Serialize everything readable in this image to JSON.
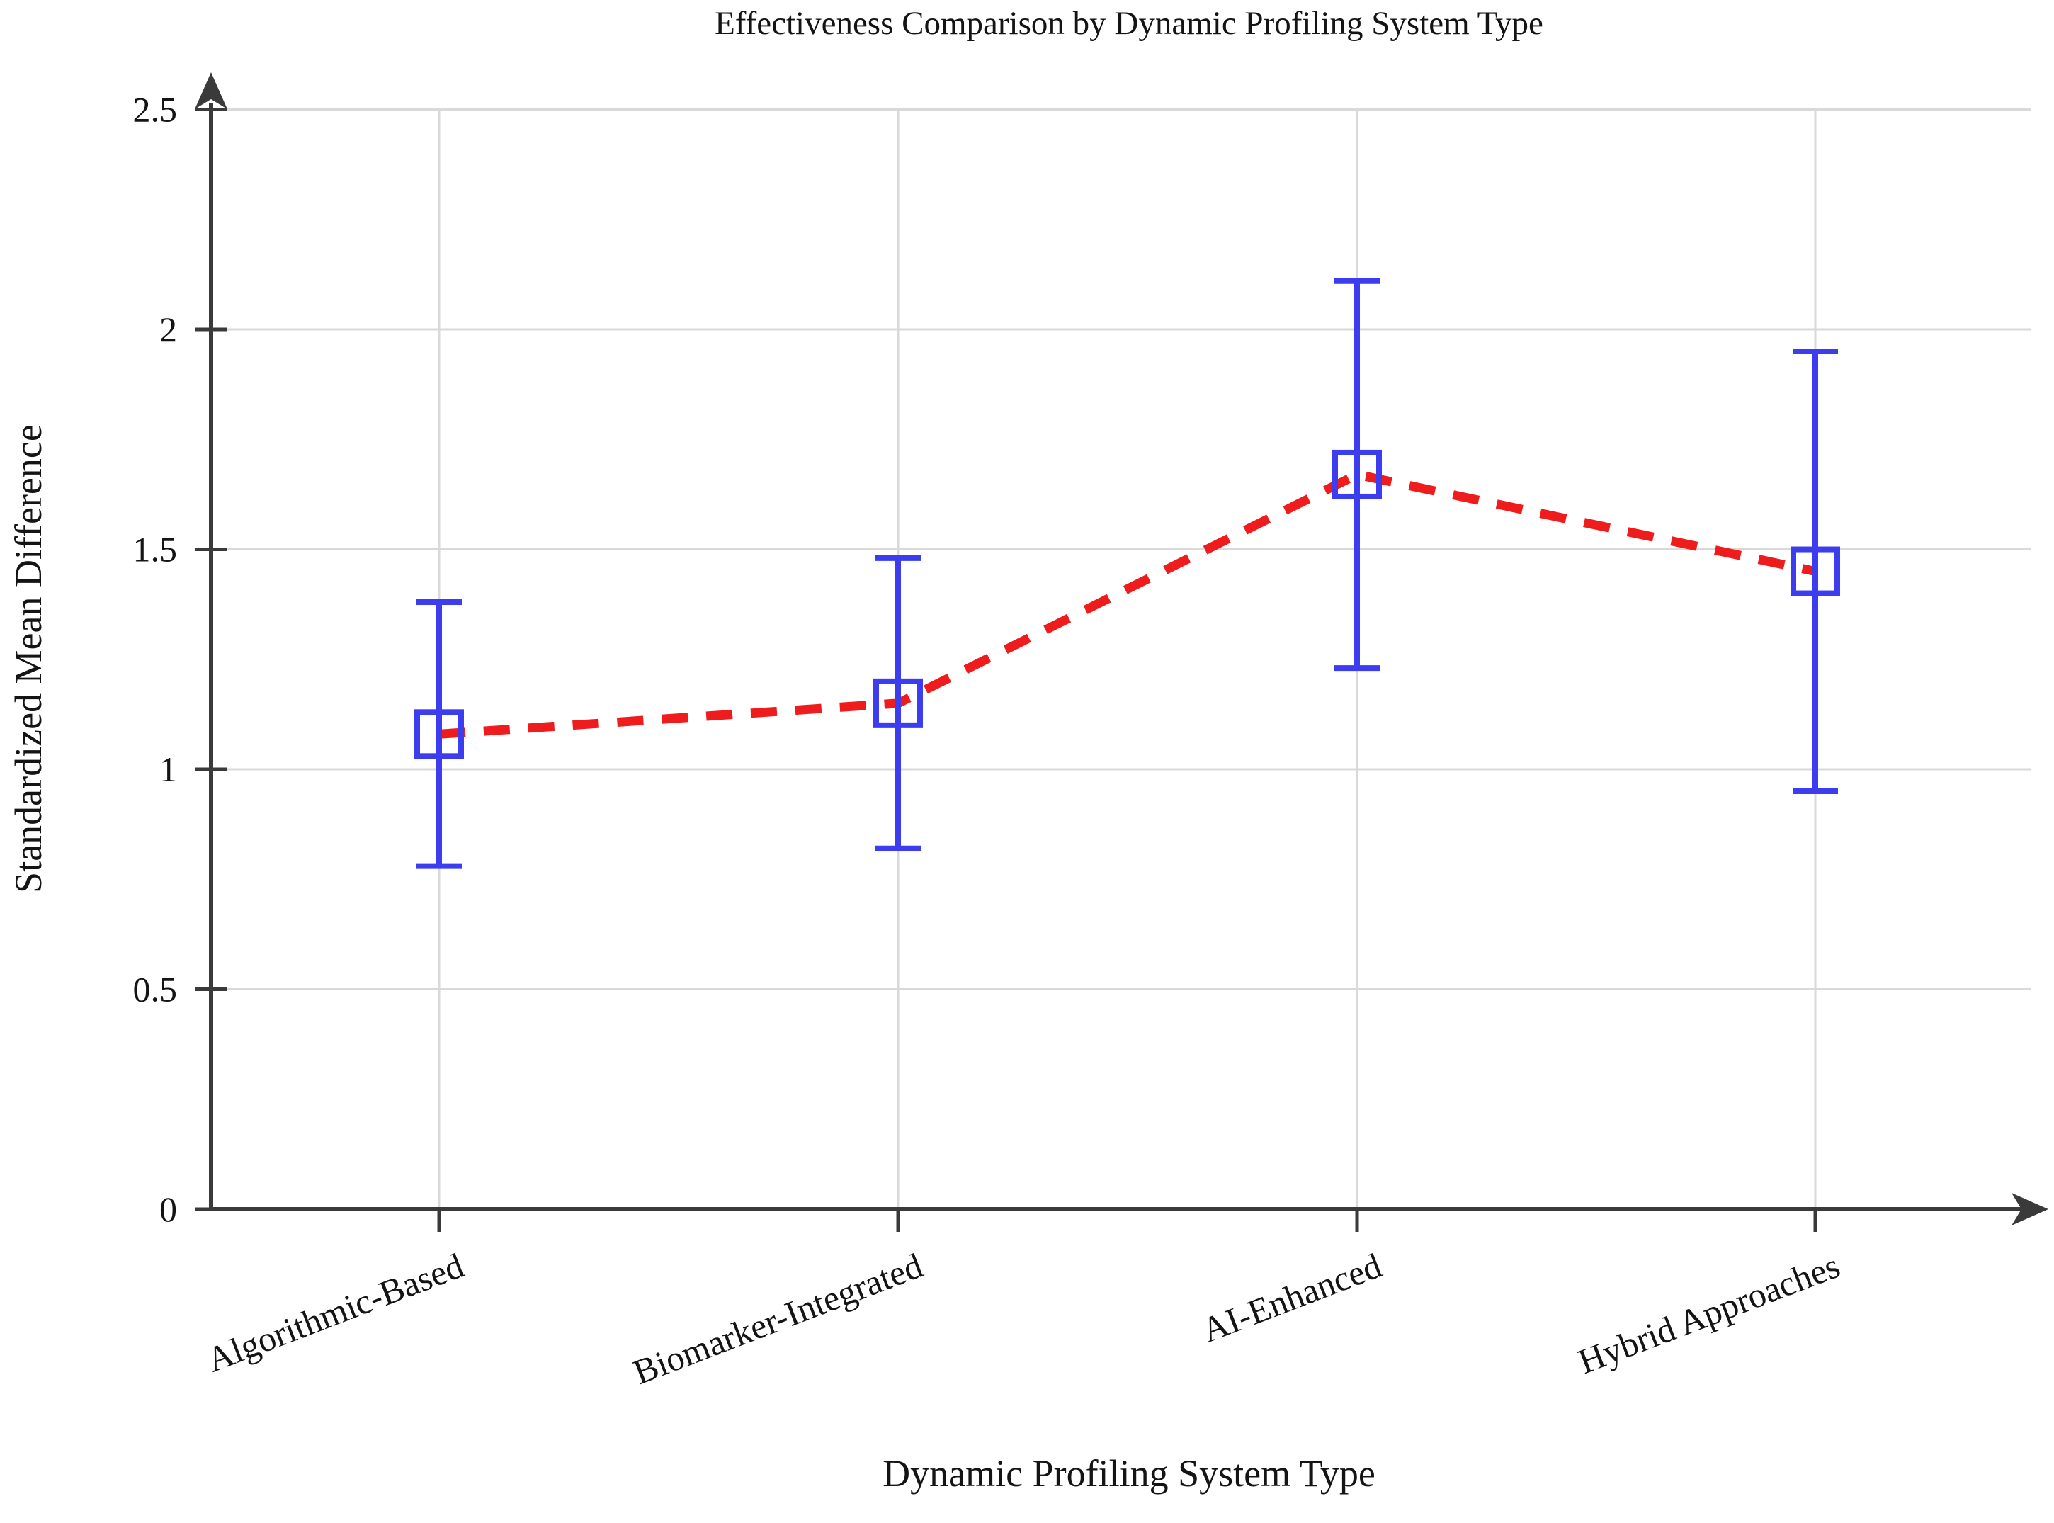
{
  "chart_data": {
    "type": "line",
    "title": "Effectiveness Comparison by Dynamic Profiling System Type",
    "xlabel": "Dynamic Profiling System Type",
    "ylabel": "Standardized Mean Difference",
    "categories": [
      "Algorithmic-Based",
      "Biomarker-Integrated",
      "AI-Enhanced",
      "Hybrid Approaches"
    ],
    "series": [
      {
        "name": "Standardized Mean Difference",
        "values": [
          1.08,
          1.15,
          1.67,
          1.45
        ],
        "ci_lower": [
          0.78,
          0.82,
          1.23,
          0.95
        ],
        "ci_upper": [
          1.38,
          1.48,
          2.11,
          1.95
        ]
      }
    ],
    "ylim": [
      0,
      2.5
    ],
    "y_ticks": [
      0,
      0.5,
      1,
      1.5,
      2,
      2.5
    ],
    "y_tick_labels": [
      "0",
      "0.5",
      "1",
      "1.5",
      "2",
      "2.5"
    ],
    "grid": true,
    "legend_position": "none",
    "marker": "open-square",
    "line_style": "dashed",
    "colors": {
      "line": "#ee1c1c",
      "marker": "#3d3df0",
      "error_bar": "#3d3df0",
      "grid": "#d9d9d9",
      "axis": "#3a3a3a",
      "text": "#141414"
    }
  }
}
